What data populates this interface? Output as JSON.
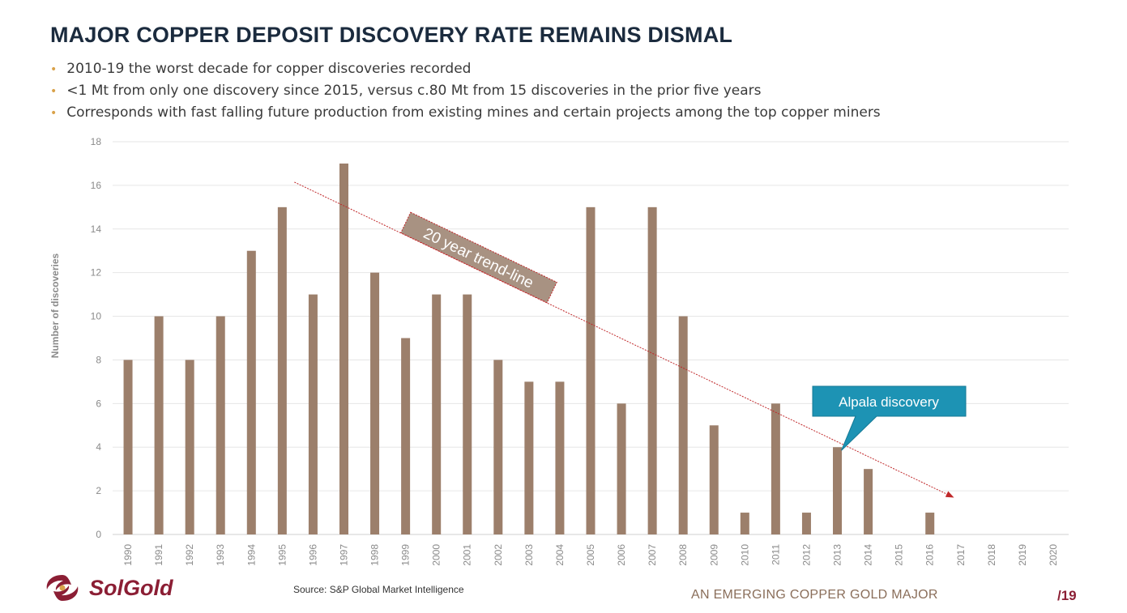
{
  "slide": {
    "title": "MAJOR COPPER DEPOSIT DISCOVERY RATE REMAINS DISMAL",
    "bullets": [
      "2010-19 the worst decade for copper discoveries recorded",
      "<1 Mt from only one discovery since 2015, versus c.80 Mt from 15 discoveries in the prior five years",
      "Corresponds with fast falling future production from existing mines and certain projects among the top copper miners"
    ],
    "bullet_color": "#d9a24a"
  },
  "chart_data": {
    "type": "bar",
    "categories": [
      "1990",
      "1991",
      "1992",
      "1993",
      "1994",
      "1995",
      "1996",
      "1997",
      "1998",
      "1999",
      "2000",
      "2001",
      "2002",
      "2003",
      "2004",
      "2005",
      "2006",
      "2007",
      "2008",
      "2009",
      "2010",
      "2011",
      "2012",
      "2013",
      "2014",
      "2015",
      "2016",
      "2017",
      "2018",
      "2019",
      "2020"
    ],
    "values": [
      8,
      10,
      8,
      10,
      13,
      15,
      11,
      17,
      12,
      9,
      11,
      11,
      8,
      7,
      7,
      15,
      6,
      15,
      10,
      5,
      1,
      6,
      1,
      4,
      3,
      0,
      1,
      0,
      0,
      0,
      0
    ],
    "ylabel": "Number of discoveries",
    "ylim": [
      0,
      18
    ],
    "yticks": [
      0,
      2,
      4,
      6,
      8,
      10,
      12,
      14,
      16,
      18
    ],
    "grid": true,
    "bar_color": "#9c7f6b",
    "trendline": {
      "label": "20 year trend-line",
      "from": {
        "x": "1995",
        "y": 16
      },
      "to": {
        "x": "2016",
        "y": 1.5
      },
      "color": "#c0282a"
    },
    "callout": {
      "label": "Alpala discovery",
      "points_to": "2013",
      "color": "#1d93b4"
    }
  },
  "footer": {
    "logo": "SolGold",
    "source": "Source: S&P Global Market Intelligence",
    "tagline": "AN EMERGING COPPER GOLD MAJOR",
    "page": "/19"
  }
}
